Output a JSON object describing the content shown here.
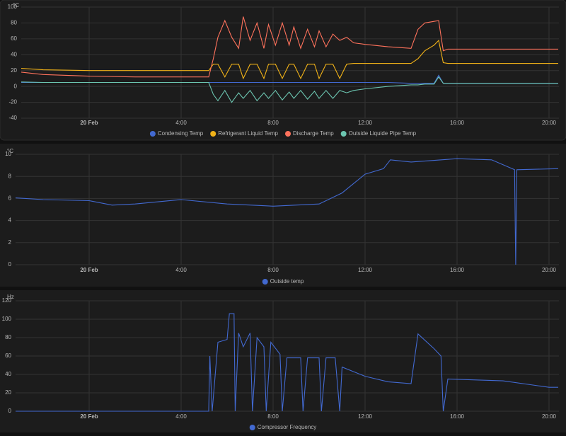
{
  "chart_data": [
    {
      "type": "line",
      "y_unit": "°C",
      "x": [
        -3.6,
        -2,
        0,
        2,
        4,
        5.2,
        5.4,
        5.6,
        5.9,
        6.2,
        6.5,
        6.7,
        7.0,
        7.3,
        7.6,
        7.8,
        8.1,
        8.4,
        8.7,
        8.9,
        9.2,
        9.5,
        9.8,
        10.0,
        10.3,
        10.6,
        10.9,
        11.2,
        11.5,
        12,
        13,
        14,
        14.3,
        14.6,
        15,
        15.2,
        15.4,
        15.6,
        16,
        18,
        20.4
      ],
      "xlim": [
        -3.6,
        20.4
      ],
      "xticks": [
        {
          "value": 0,
          "label": "20 Feb"
        },
        {
          "value": 4,
          "label": "4:00"
        },
        {
          "value": 8,
          "label": "8:00"
        },
        {
          "value": 12,
          "label": "12:00"
        },
        {
          "value": 16,
          "label": "16:00"
        },
        {
          "value": 20,
          "label": "20:00"
        }
      ],
      "ylim": [
        -40,
        100
      ],
      "yticks": [
        -40,
        -20,
        0,
        20,
        40,
        60,
        80,
        100
      ],
      "grid": true,
      "series": [
        {
          "name": "Condensing Temp",
          "color": "#4269d0",
          "values": [
            5,
            5,
            5,
            5,
            5,
            5,
            5,
            5,
            5,
            5,
            5,
            5,
            5,
            5,
            5,
            5,
            5,
            5,
            5,
            5,
            5,
            5,
            5,
            5,
            5,
            5,
            5,
            5,
            5,
            5,
            5,
            4,
            4,
            4,
            4,
            14,
            4,
            4,
            4,
            4,
            4
          ]
        },
        {
          "name": "Refrigerant Liquid Temp",
          "color": "#efb118",
          "values": [
            24,
            21,
            20,
            20,
            20,
            20,
            28,
            28,
            12,
            28,
            28,
            10,
            28,
            28,
            10,
            28,
            28,
            10,
            28,
            28,
            10,
            28,
            28,
            10,
            28,
            28,
            10,
            28,
            29,
            29,
            29,
            29,
            35,
            45,
            52,
            58,
            30,
            29,
            29,
            29,
            29
          ]
        },
        {
          "name": "Discharge Temp",
          "color": "#ff725c",
          "values": [
            20,
            15,
            13,
            12,
            12,
            12,
            35,
            62,
            83,
            62,
            48,
            88,
            58,
            80,
            48,
            78,
            52,
            80,
            52,
            75,
            48,
            72,
            50,
            70,
            50,
            66,
            58,
            62,
            55,
            53,
            50,
            48,
            72,
            80,
            82,
            83,
            45,
            47,
            47,
            47,
            47
          ]
        },
        {
          "name": "Outside Liquide Pipe Temp",
          "color": "#6cc5b0",
          "values": [
            6,
            5,
            5,
            5,
            5,
            5,
            -10,
            -18,
            -5,
            -20,
            -8,
            -15,
            -5,
            -18,
            -8,
            -15,
            -5,
            -17,
            -7,
            -15,
            -5,
            -16,
            -6,
            -15,
            -5,
            -15,
            -5,
            -8,
            -5,
            -3,
            0,
            2,
            2,
            3,
            3,
            12,
            4,
            4,
            4,
            4,
            4
          ]
        }
      ]
    },
    {
      "type": "line",
      "y_unit": "°C",
      "x": [
        -3.6,
        -2,
        0,
        1,
        2,
        4,
        6,
        8,
        10,
        11,
        12,
        12.8,
        13.1,
        14,
        16,
        17.5,
        18.5,
        18.55,
        18.6,
        20.4
      ],
      "xlim": [
        -3.6,
        20.4
      ],
      "xticks": [
        {
          "value": 0,
          "label": "20 Feb"
        },
        {
          "value": 4,
          "label": "4:00"
        },
        {
          "value": 8,
          "label": "8:00"
        },
        {
          "value": 12,
          "label": "12:00"
        },
        {
          "value": 16,
          "label": "16:00"
        },
        {
          "value": 20,
          "label": "20:00"
        }
      ],
      "ylim": [
        0,
        10
      ],
      "yticks": [
        0,
        2,
        4,
        6,
        8,
        10
      ],
      "grid": true,
      "series": [
        {
          "name": "Outside temp",
          "color": "#4269d0",
          "values": [
            6.1,
            5.9,
            5.8,
            5.4,
            5.5,
            5.9,
            5.5,
            5.3,
            5.5,
            6.5,
            8.2,
            8.7,
            9.5,
            9.3,
            9.6,
            9.5,
            8.6,
            0,
            8.6,
            8.7
          ]
        }
      ]
    },
    {
      "type": "line",
      "y_unit": "Hz",
      "x": [
        -3.6,
        5.2,
        5.25,
        5.35,
        5.6,
        6.0,
        6.1,
        6.3,
        6.35,
        6.5,
        6.7,
        7.0,
        7.1,
        7.3,
        7.6,
        7.7,
        7.9,
        8.3,
        8.4,
        8.6,
        9.2,
        9.3,
        9.5,
        10.0,
        10.1,
        10.3,
        10.7,
        10.9,
        11.0,
        12,
        13,
        14,
        14.3,
        15,
        15.3,
        15.4,
        15.6,
        18,
        20,
        20.4
      ],
      "xlim": [
        -3.6,
        20.4
      ],
      "xticks": [
        {
          "value": 0,
          "label": "20 Feb"
        },
        {
          "value": 4,
          "label": "4:00"
        },
        {
          "value": 8,
          "label": "8:00"
        },
        {
          "value": 12,
          "label": "12:00"
        },
        {
          "value": 16,
          "label": "16:00"
        },
        {
          "value": 20,
          "label": "20:00"
        }
      ],
      "ylim": [
        0,
        120
      ],
      "yticks": [
        0,
        20,
        40,
        60,
        80,
        100,
        120
      ],
      "grid": true,
      "series": [
        {
          "name": "Compressor Frequency",
          "color": "#4269d0",
          "values": [
            0,
            0,
            60,
            0,
            75,
            78,
            106,
            106,
            0,
            85,
            70,
            85,
            0,
            80,
            70,
            0,
            75,
            62,
            0,
            58,
            58,
            0,
            58,
            58,
            0,
            58,
            58,
            0,
            48,
            38,
            32,
            30,
            84,
            68,
            60,
            0,
            35,
            33,
            26,
            26
          ]
        }
      ]
    }
  ]
}
